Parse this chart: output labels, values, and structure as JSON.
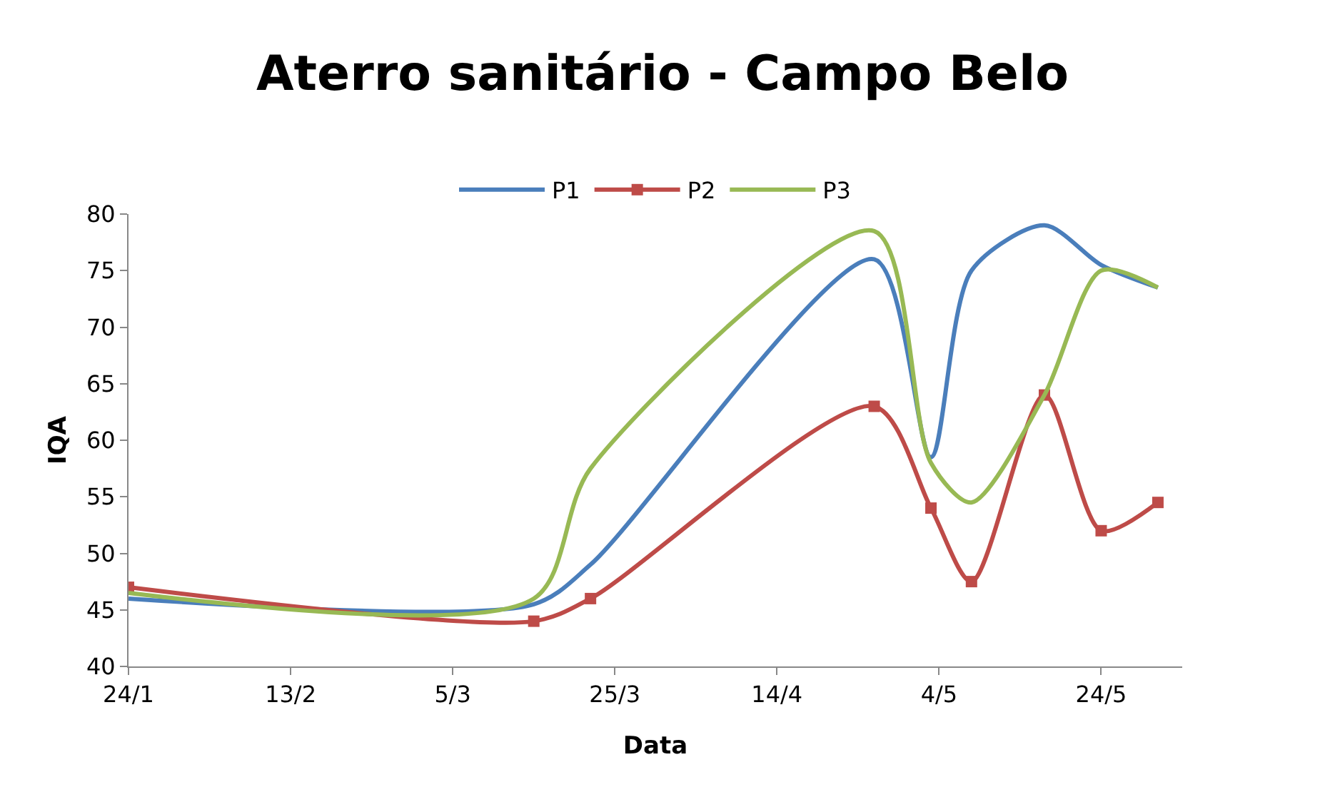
{
  "chart_data": {
    "type": "line",
    "title": "Aterro sanitário - Campo Belo",
    "xlabel": "Data",
    "ylabel": "IQA",
    "x": [
      "--01-24",
      "--03-15",
      "--03-22",
      "--04-26",
      "--05-03",
      "--05-08",
      "--05-17",
      "--05-24",
      "--05-31"
    ],
    "series": [
      {
        "name": "P1",
        "color": "#4a7ebb",
        "marker": "none",
        "values": [
          46,
          45.5,
          49,
          76,
          58.5,
          75,
          79,
          75.5,
          73.5
        ]
      },
      {
        "name": "P2",
        "color": "#be4b48",
        "marker": "square",
        "values": [
          47,
          44,
          46,
          63,
          54,
          47.5,
          64,
          52,
          54.5
        ]
      },
      {
        "name": "P3",
        "color": "#98b954",
        "marker": "none",
        "values": [
          46.5,
          46,
          57.5,
          78.5,
          58,
          54.5,
          64,
          75,
          73.5
        ]
      }
    ],
    "xlim": [
      "--01-24",
      "--06-03"
    ],
    "xticks": [
      {
        "value": "--01-24",
        "label": "24/1"
      },
      {
        "value": "--02-13",
        "label": "13/2"
      },
      {
        "value": "--03-05",
        "label": "5/3"
      },
      {
        "value": "--03-25",
        "label": "25/3"
      },
      {
        "value": "--04-14",
        "label": "14/4"
      },
      {
        "value": "--05-04",
        "label": "4/5"
      },
      {
        "value": "--05-24",
        "label": "24/5"
      }
    ],
    "ylim": [
      40,
      80
    ],
    "yticks": [
      40,
      45,
      50,
      55,
      60,
      65,
      70,
      75,
      80
    ],
    "grid": false,
    "legend": "top",
    "line_style": "solid"
  }
}
